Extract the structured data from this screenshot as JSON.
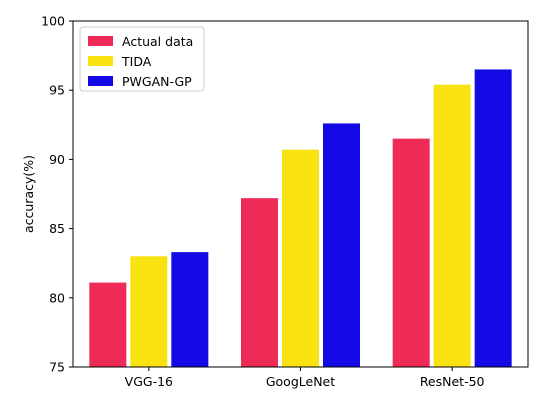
{
  "chart_data": {
    "type": "bar",
    "title": "",
    "xlabel": "",
    "ylabel": "accuracy(%)",
    "ylim": [
      75,
      100
    ],
    "yticks": [
      75,
      80,
      85,
      90,
      95,
      100
    ],
    "grid": false,
    "legend_position": "top-left",
    "categories": [
      "VGG-16",
      "GoogLeNet",
      "ResNet-50"
    ],
    "series": [
      {
        "name": "Actual data",
        "color": "#EE2A56",
        "values": [
          81.1,
          87.2,
          91.5
        ]
      },
      {
        "name": "TIDA",
        "color": "#F9E212",
        "values": [
          83.0,
          90.7,
          95.4
        ]
      },
      {
        "name": "PWGAN-GP",
        "color": "#130AE6",
        "values": [
          83.3,
          92.6,
          96.5
        ]
      }
    ]
  }
}
